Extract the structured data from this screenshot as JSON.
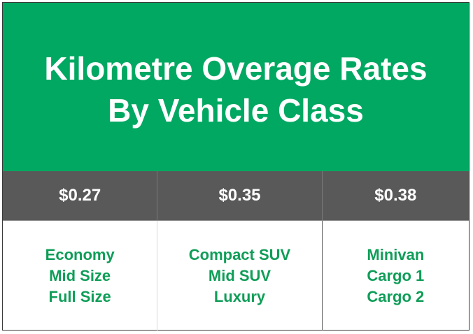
{
  "header": {
    "title": [
      "Kilometre Overage Rates",
      "By Vehicle Class"
    ]
  },
  "columns": [
    {
      "rate": "$0.27",
      "classes": [
        "Economy",
        "Mid Size",
        "Full Size"
      ]
    },
    {
      "rate": "$0.35",
      "classes": [
        "Compact SUV",
        "Mid SUV",
        "Luxury"
      ]
    },
    {
      "rate": "$0.38",
      "classes": [
        "Minivan",
        "Cargo 1",
        "Cargo 2"
      ]
    }
  ]
}
